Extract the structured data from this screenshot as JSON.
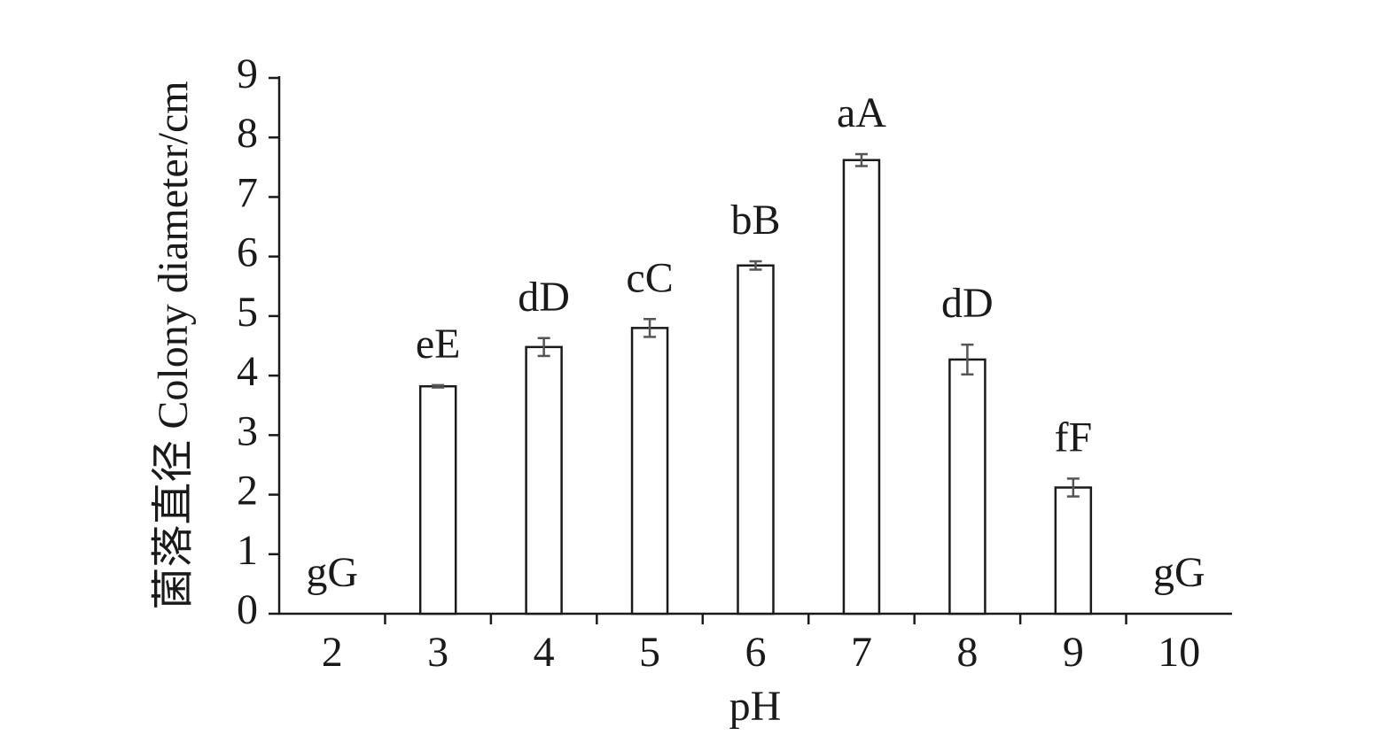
{
  "chart_data": {
    "type": "bar",
    "x_label": "pH",
    "y_label": "菌落直径 Colony diameter/cm",
    "categories": [
      "2",
      "3",
      "4",
      "5",
      "6",
      "7",
      "8",
      "9",
      "10"
    ],
    "series": [
      {
        "name": "Colony diameter",
        "color": "#ffffff",
        "values": [
          0,
          3.82,
          4.48,
          4.8,
          5.85,
          7.62,
          4.27,
          2.12,
          0
        ],
        "errors": [
          0,
          0.02,
          0.15,
          0.15,
          0.07,
          0.1,
          0.25,
          0.15,
          0
        ]
      }
    ],
    "annotations": [
      "gG",
      "eE",
      "dD",
      "cC",
      "bB",
      "aA",
      "dD",
      "fF",
      "gG"
    ],
    "ylim": [
      0,
      9
    ],
    "yticks": [
      0,
      1,
      2,
      3,
      4,
      5,
      6,
      7,
      8,
      9
    ],
    "grid": false
  }
}
